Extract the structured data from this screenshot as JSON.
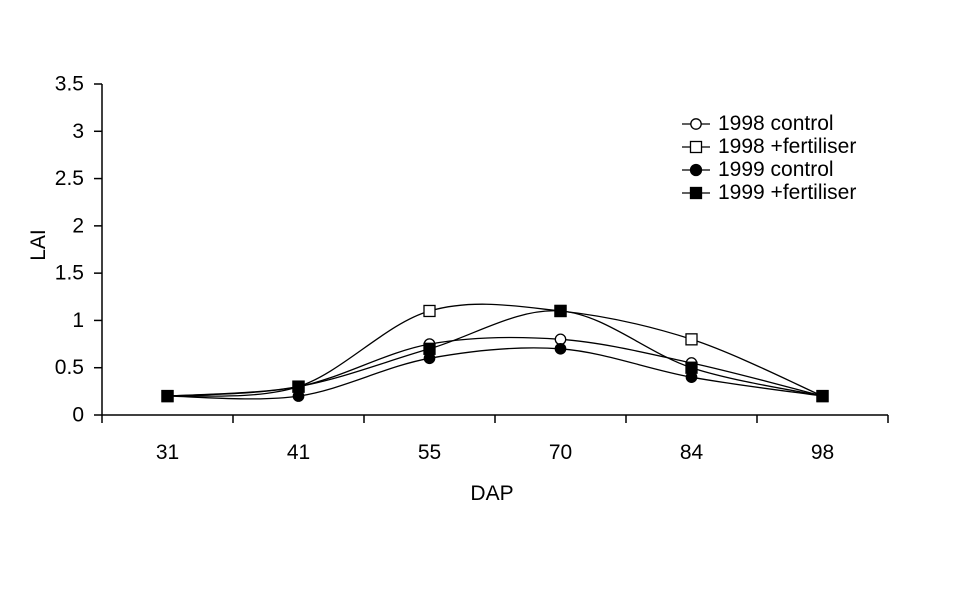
{
  "chart_data": {
    "type": "line",
    "title": "",
    "xlabel": "DAP",
    "ylabel": "LAI",
    "categories": [
      "31",
      "41",
      "55",
      "70",
      "84",
      "98"
    ],
    "ylim": [
      0,
      3.5
    ],
    "yticks": {
      "values": [
        0,
        0.5,
        1,
        1.5,
        2,
        2.5,
        3,
        3.5
      ],
      "labels": [
        "0",
        "0.5",
        "1",
        "1.5",
        "2",
        "2.5",
        "3",
        "3.5"
      ]
    },
    "grid": false,
    "line_smoothing": true,
    "legend_position": "top-right",
    "colors": {
      "line": "#000000",
      "background": "#ffffff",
      "open_marker_fill": "#ffffff",
      "solid_marker_fill": "#000000"
    },
    "series": [
      {
        "name": "1998 control",
        "marker": "circle",
        "fill": "open",
        "values": [
          0.2,
          0.3,
          0.75,
          0.8,
          0.55,
          0.2
        ]
      },
      {
        "name": "1998 +fertiliser",
        "marker": "square",
        "fill": "open",
        "values": [
          0.2,
          0.3,
          1.1,
          1.1,
          0.8,
          0.2
        ]
      },
      {
        "name": "1999 control",
        "marker": "circle",
        "fill": "solid",
        "values": [
          0.2,
          0.2,
          0.6,
          0.7,
          0.4,
          0.2
        ]
      },
      {
        "name": "1999 +fertiliser",
        "marker": "square",
        "fill": "solid",
        "values": [
          0.2,
          0.3,
          0.7,
          1.1,
          0.5,
          0.2
        ]
      }
    ]
  }
}
